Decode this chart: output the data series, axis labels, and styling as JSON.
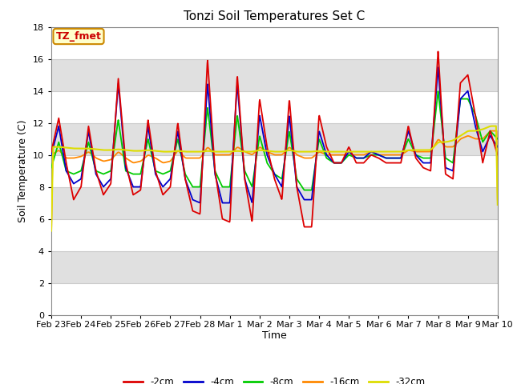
{
  "title": "Tonzi Soil Temperatures Set C",
  "xlabel": "Time",
  "ylabel": "Soil Temperature (C)",
  "ylim": [
    0,
    18
  ],
  "yticks": [
    0,
    2,
    4,
    6,
    8,
    10,
    12,
    14,
    16,
    18
  ],
  "annotation_text": "TZ_fmet",
  "annotation_color": "#cc0000",
  "annotation_bg": "#ffffcc",
  "annotation_border": "#cc8800",
  "series_colors": {
    "-2cm": "#dd0000",
    "-4cm": "#0000cc",
    "-8cm": "#00cc00",
    "-16cm": "#ff8800",
    "-32cm": "#dddd00"
  },
  "band_colors": [
    "#ffffff",
    "#e0e0e0"
  ],
  "fig_bg": "#ffffff",
  "x_labels": [
    "Feb 23",
    "Feb 24",
    "Feb 25",
    "Feb 26",
    "Feb 27",
    "Feb 28",
    "Mar 1",
    "Mar 2",
    "Mar 3",
    "Mar 4",
    "Mar 5",
    "Mar 6",
    "Mar 7",
    "Mar 8",
    "Mar 9",
    "Mar 10"
  ],
  "key_t": [
    0,
    0.25,
    0.5,
    0.75,
    1.0,
    1.25,
    1.5,
    1.75,
    2.0,
    2.25,
    2.5,
    2.75,
    3.0,
    3.25,
    3.5,
    3.75,
    4.0,
    4.25,
    4.5,
    4.75,
    5.0,
    5.25,
    5.5,
    5.75,
    6.0,
    6.25,
    6.5,
    6.75,
    7.0,
    7.25,
    7.5,
    7.75,
    8.0,
    8.25,
    8.5,
    8.75,
    9.0,
    9.25,
    9.5,
    9.75,
    10.0,
    10.25,
    10.5,
    10.75,
    11.0,
    11.25,
    11.5,
    11.75,
    12.0,
    12.25,
    12.5,
    12.75,
    13.0,
    13.25,
    13.5,
    13.75,
    14.0,
    14.25,
    14.5,
    14.75,
    15.0
  ],
  "s2": [
    10.2,
    12.3,
    9.5,
    7.2,
    8.0,
    11.8,
    9.0,
    7.5,
    8.2,
    14.8,
    9.5,
    7.5,
    7.8,
    12.2,
    9.0,
    7.5,
    8.0,
    12.0,
    8.5,
    6.5,
    6.3,
    16.0,
    9.0,
    6.0,
    5.8,
    15.0,
    8.5,
    5.8,
    13.5,
    10.5,
    8.5,
    7.2,
    13.5,
    8.0,
    5.5,
    5.5,
    12.5,
    10.5,
    9.5,
    9.5,
    10.5,
    9.5,
    9.5,
    10.0,
    9.8,
    9.5,
    9.5,
    9.5,
    11.8,
    9.8,
    9.2,
    9.0,
    16.5,
    8.8,
    8.5,
    14.5,
    15.0,
    12.5,
    9.5,
    11.5,
    10.0
  ],
  "s4": [
    10.0,
    11.8,
    9.0,
    8.2,
    8.5,
    11.5,
    8.8,
    8.0,
    8.5,
    14.5,
    9.2,
    8.0,
    8.0,
    11.8,
    8.8,
    8.0,
    8.5,
    11.5,
    8.5,
    7.2,
    7.0,
    14.5,
    8.8,
    7.0,
    7.0,
    14.5,
    8.5,
    7.0,
    12.5,
    10.0,
    8.8,
    8.0,
    12.5,
    8.0,
    7.2,
    7.2,
    11.5,
    10.0,
    9.5,
    9.5,
    10.2,
    9.8,
    9.8,
    10.2,
    10.0,
    9.8,
    9.8,
    9.8,
    11.5,
    10.0,
    9.5,
    9.5,
    15.5,
    9.2,
    9.0,
    13.5,
    14.0,
    11.8,
    10.2,
    11.2,
    10.5
  ],
  "s8": [
    9.2,
    10.8,
    9.0,
    8.8,
    9.0,
    10.8,
    9.0,
    8.8,
    9.0,
    12.2,
    9.0,
    8.8,
    8.8,
    11.0,
    9.0,
    8.8,
    9.0,
    11.0,
    8.8,
    8.0,
    8.0,
    13.0,
    9.0,
    8.0,
    8.0,
    12.5,
    9.0,
    8.0,
    11.2,
    9.5,
    8.8,
    8.5,
    11.5,
    8.5,
    7.8,
    7.8,
    11.0,
    9.8,
    9.5,
    9.5,
    10.0,
    9.8,
    9.8,
    10.0,
    10.0,
    9.8,
    9.8,
    9.8,
    11.0,
    10.0,
    9.8,
    9.8,
    14.0,
    9.8,
    9.5,
    13.5,
    13.5,
    12.5,
    10.8,
    11.5,
    11.0
  ],
  "s16": [
    10.0,
    10.3,
    9.8,
    9.8,
    9.9,
    10.2,
    9.8,
    9.6,
    9.7,
    10.2,
    9.8,
    9.5,
    9.6,
    10.0,
    9.8,
    9.5,
    9.6,
    10.3,
    9.8,
    9.8,
    9.8,
    10.5,
    10.0,
    10.0,
    10.0,
    10.5,
    10.2,
    10.0,
    10.5,
    10.2,
    10.0,
    10.0,
    10.5,
    10.0,
    9.8,
    9.8,
    10.2,
    10.0,
    10.0,
    10.0,
    10.0,
    10.0,
    10.0,
    10.2,
    10.0,
    10.0,
    10.0,
    10.0,
    10.3,
    10.2,
    10.2,
    10.2,
    11.0,
    10.5,
    10.5,
    11.0,
    11.2,
    11.0,
    11.0,
    11.5,
    11.5
  ],
  "s32": [
    10.5,
    10.5,
    10.45,
    10.4,
    10.4,
    10.4,
    10.35,
    10.3,
    10.3,
    10.35,
    10.3,
    10.25,
    10.25,
    10.3,
    10.25,
    10.2,
    10.2,
    10.25,
    10.2,
    10.2,
    10.2,
    10.25,
    10.2,
    10.2,
    10.2,
    10.25,
    10.2,
    10.2,
    10.3,
    10.25,
    10.2,
    10.2,
    10.3,
    10.2,
    10.2,
    10.2,
    10.25,
    10.2,
    10.2,
    10.2,
    10.2,
    10.2,
    10.2,
    10.2,
    10.2,
    10.2,
    10.2,
    10.2,
    10.3,
    10.3,
    10.3,
    10.3,
    10.8,
    10.8,
    10.9,
    11.2,
    11.5,
    11.5,
    11.6,
    11.8,
    11.8
  ]
}
